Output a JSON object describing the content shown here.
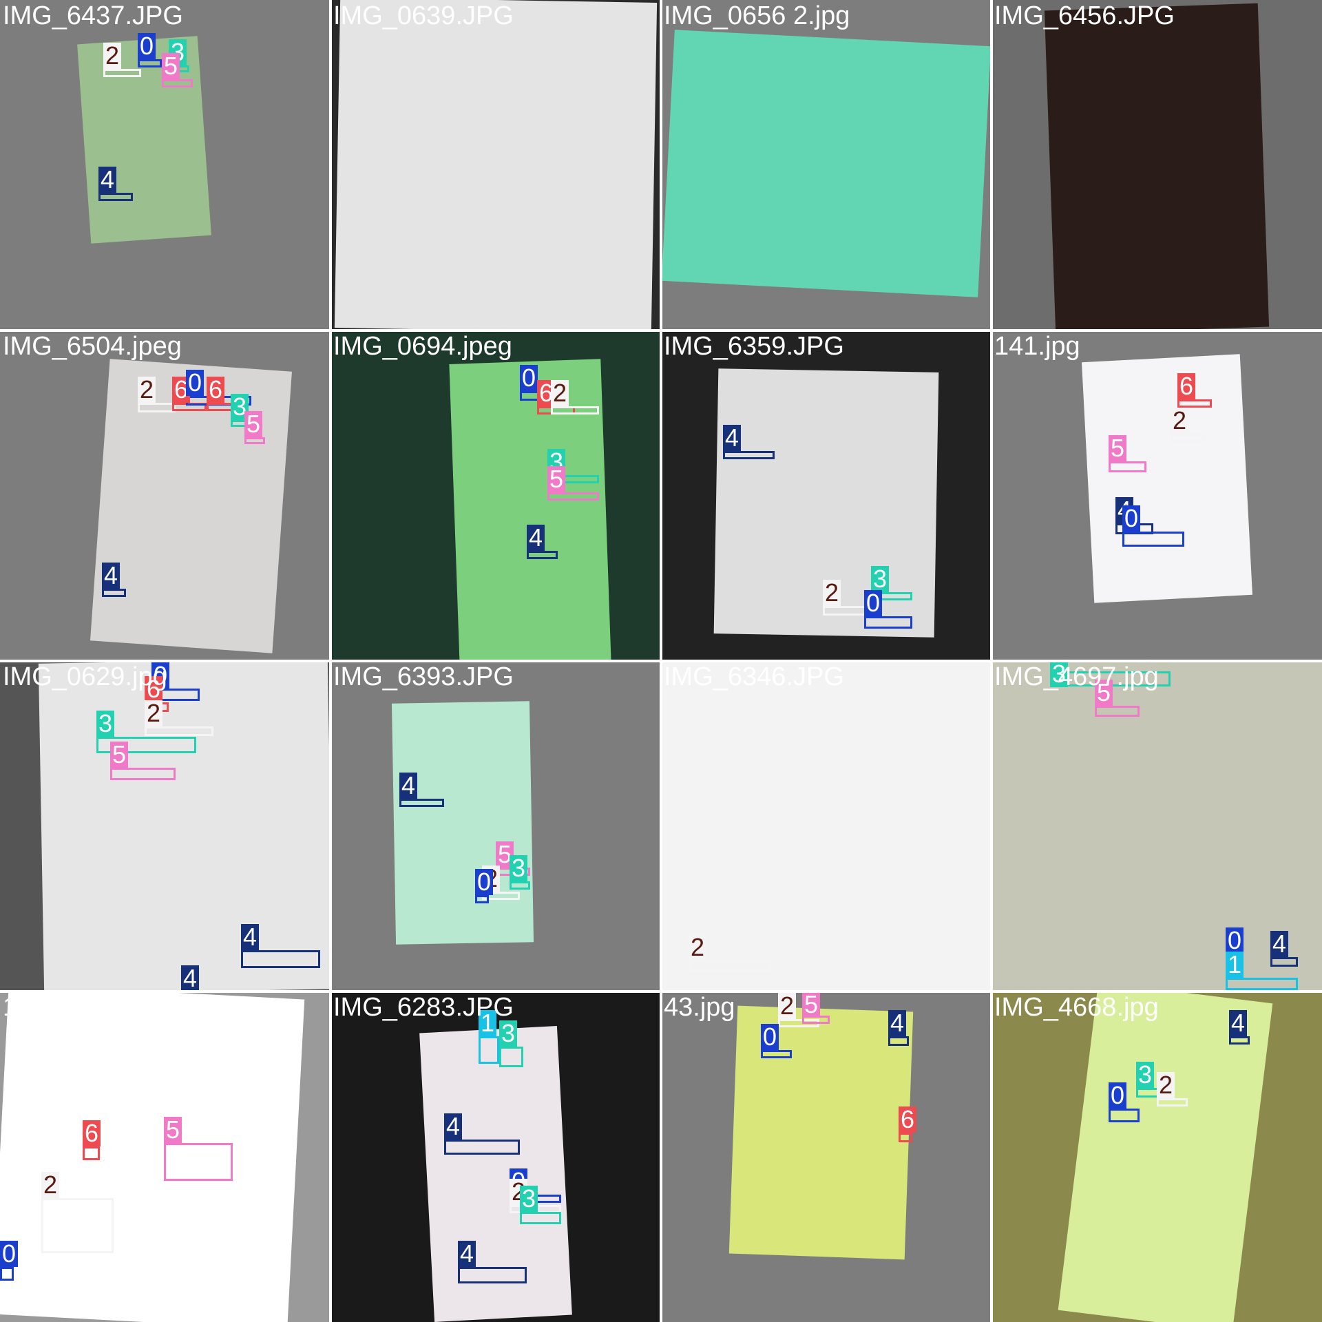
{
  "classes": {
    "0": {
      "color": "#1a3fcf",
      "text": "#ffffff"
    },
    "1": {
      "color": "#18c1e6",
      "text": "#ffffff"
    },
    "2": {
      "color": "#f4f4f4",
      "text": "#5a1a10"
    },
    "3": {
      "color": "#22d1b0",
      "text": "#ffffff"
    },
    "4": {
      "color": "#16307a",
      "text": "#ffffff"
    },
    "5": {
      "color": "#f07ac8",
      "text": "#ffffff"
    },
    "6": {
      "color": "#ee4b50",
      "text": "#ffffff"
    }
  },
  "tiles": [
    {
      "filename": "IMG_6437.JPG"
    },
    {
      "filename": "IMG_0639.JPG"
    },
    {
      "filename": "IMG_0656 2.jpg"
    },
    {
      "filename": "IMG_6456.JPG"
    },
    {
      "filename": "IMG_6504.jpeg"
    },
    {
      "filename": "IMG_0694.jpeg"
    },
    {
      "filename": "IMG_6359.JPG"
    },
    {
      "filename": "141.jpg"
    },
    {
      "filename": "IMG_0629.jpg"
    },
    {
      "filename": "IMG_6393.JPG"
    },
    {
      "filename": "IMG_6346.JPG"
    },
    {
      "filename": "IMG_4697.jpg"
    },
    {
      "filename": "133.jpg"
    },
    {
      "filename": "IMG_6283.JPG"
    },
    {
      "filename": "43.jpg"
    },
    {
      "filename": "IMG_4668.jpg"
    }
  ]
}
